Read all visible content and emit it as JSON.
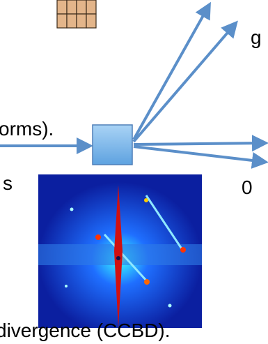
{
  "labels": {
    "g": "g",
    "zero": "0",
    "left_top": "orms).",
    "left_mid": "s",
    "bottom": "divergence (CCBD)."
  }
}
